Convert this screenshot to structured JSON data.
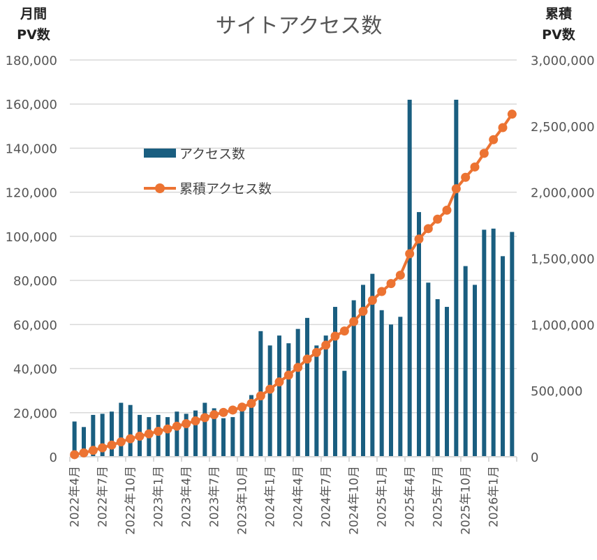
{
  "chart_data": {
    "type": "bar+line",
    "title": "サイトアクセス数",
    "y_left_title": [
      "月間",
      "PV数"
    ],
    "y_right_title": [
      "累積",
      "PV数"
    ],
    "ylim_left": [
      0,
      180000
    ],
    "ylim_right": [
      0,
      3000000
    ],
    "yticks_left": [
      "0",
      "20,000",
      "40,000",
      "60,000",
      "80,000",
      "100,000",
      "120,000",
      "140,000",
      "160,000",
      "180,000"
    ],
    "yticks_right": [
      "0",
      "500,000",
      "1,000,000",
      "1,500,000",
      "2,000,000",
      "2,500,000",
      "3,000,000"
    ],
    "grid": true,
    "legend_position": "top-left (inside plot)",
    "x": [
      "2022年4月",
      "2022年5月",
      "2022年6月",
      "2022年7月",
      "2022年8月",
      "2022年9月",
      "2022年10月",
      "2022年11月",
      "2022年12月",
      "2023年1月",
      "2023年2月",
      "2023年3月",
      "2023年4月",
      "2023年5月",
      "2023年6月",
      "2023年7月",
      "2023年8月",
      "2023年9月",
      "2023年10月",
      "2023年11月",
      "2023年12月",
      "2024年1月",
      "2024年2月",
      "2024年3月",
      "2024年4月",
      "2024年5月",
      "2024年6月",
      "2024年7月",
      "2024年8月",
      "2024年9月",
      "2024年10月",
      "2024年11月",
      "2024年12月",
      "2025年1月",
      "2025年2月",
      "2025年3月",
      "2025年4月",
      "2025年5月",
      "2025年6月",
      "2025年7月",
      "2025年8月",
      "2025年9月",
      "2025年10月",
      "2025年11月",
      "2025年12月",
      "2026年1月",
      "2026年2月",
      "2026年3月"
    ],
    "xtick_labels_every": 3,
    "series": [
      {
        "name": "アクセス数",
        "type": "bar",
        "axis": "left",
        "color": "#1a5e80",
        "values": [
          16000,
          13500,
          19000,
          19500,
          20500,
          24500,
          23500,
          19000,
          18000,
          19000,
          18000,
          20500,
          19500,
          21000,
          24500,
          22000,
          17500,
          18000,
          22000,
          28000,
          57000,
          50500,
          55000,
          51500,
          58000,
          63000,
          50500,
          55000,
          68000,
          39000,
          71000,
          78000,
          83000,
          66500,
          60000,
          63500,
          162000,
          111000,
          79000,
          71500,
          68000,
          162000,
          86500,
          78000,
          103000,
          103500,
          91000,
          102000
        ]
      },
      {
        "name": "累積アクセス数",
        "type": "line",
        "axis": "right",
        "color": "#ec7332",
        "values": [
          16000,
          29500,
          48500,
          68000,
          88500,
          113000,
          136500,
          155500,
          173500,
          192500,
          210500,
          231000,
          250500,
          271500,
          296000,
          318000,
          335500,
          353500,
          375500,
          403500,
          460500,
          511000,
          566000,
          617500,
          675500,
          738500,
          789000,
          844000,
          912000,
          951000,
          1022000,
          1100000,
          1183000,
          1249500,
          1309500,
          1373000,
          1535000,
          1646000,
          1725000,
          1796500,
          1864500,
          2026500,
          2113000,
          2191000,
          2294000,
          2397500,
          2488500,
          2590500
        ]
      }
    ]
  }
}
